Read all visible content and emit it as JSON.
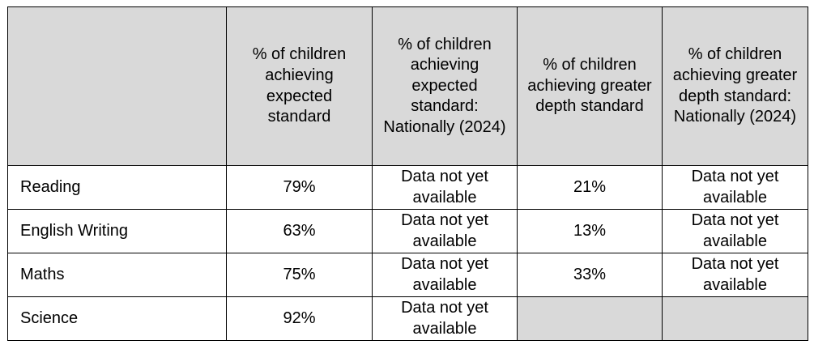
{
  "table": {
    "headers": [
      "",
      "% of children achieving expected standard",
      "% of children achieving expected standard: Nationally (2024)",
      "% of children achieving greater depth standard",
      "% of children achieving greater depth standard: Nationally (2024)"
    ],
    "rows": [
      {
        "subject": "Reading",
        "expected": "79%",
        "expected_national": "Data not yet available",
        "greater_depth": "21%",
        "greater_depth_national": "Data not yet available"
      },
      {
        "subject": "English Writing",
        "expected": "63%",
        "expected_national": "Data not yet available",
        "greater_depth": "13%",
        "greater_depth_national": "Data not yet available"
      },
      {
        "subject": "Maths",
        "expected": "75%",
        "expected_national": "Data not yet available",
        "greater_depth": "33%",
        "greater_depth_national": "Data not yet available"
      },
      {
        "subject": "Science",
        "expected": "92%",
        "expected_national": "Data not yet available",
        "greater_depth": "",
        "greater_depth_national": ""
      }
    ],
    "colors": {
      "header_background": "#d9d9d9",
      "border": "#000000",
      "shaded_cell": "#d9d9d9"
    }
  }
}
